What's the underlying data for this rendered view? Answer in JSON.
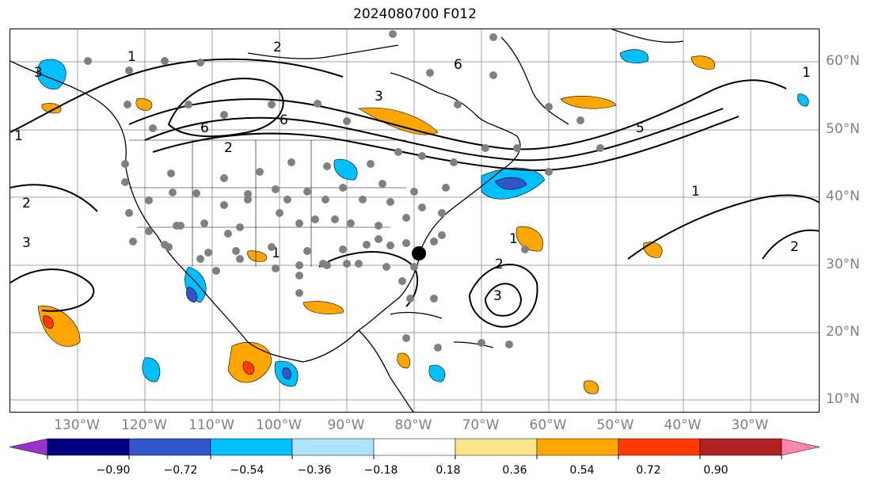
{
  "title": "2024080700 F012",
  "lon_labels": [
    "130°W",
    "120°W",
    "110°W",
    "100°W",
    "90°W",
    "80°W",
    "70°W",
    "60°W",
    "50°W",
    "40°W",
    "30°W"
  ],
  "lat_labels": [
    "60°N",
    "50°N",
    "40°N",
    "30°N",
    "20°N",
    "10°N"
  ],
  "colorbar": {
    "colors": [
      "#9933cc",
      "#000080",
      "#3355cc",
      "#00bfff",
      "#aee3ff",
      "#ffffff",
      "#fde68a",
      "#ffa500",
      "#ff3b00",
      "#b22222",
      "#ff85b0"
    ],
    "tick_labels": [
      "−0.90",
      "−0.72",
      "−0.54",
      "−0.36",
      "−0.18",
      "0.18",
      "0.36",
      "0.54",
      "0.72",
      "0.90"
    ]
  },
  "contour_labels": [
    "1",
    "2",
    "3",
    "5",
    "6"
  ],
  "station_marker_color": "#808080",
  "storm_marker_color": "#000000"
}
